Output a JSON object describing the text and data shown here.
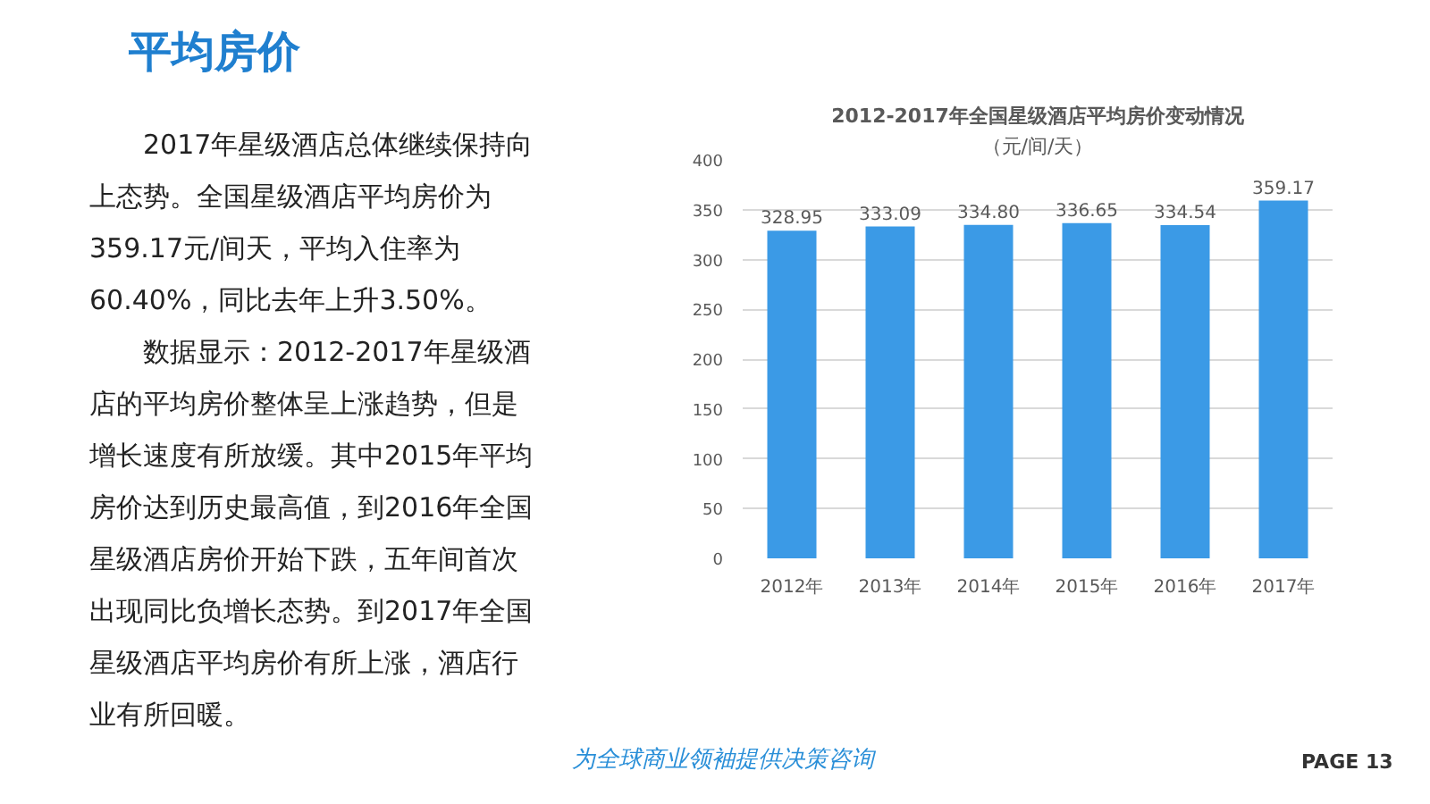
{
  "chart_data": {
    "type": "bar",
    "title": "2012-2017年全国星级酒店平均房价变动情况",
    "subtitle": "（元/间/天）",
    "categories": [
      "2012年",
      "2013年",
      "2014年",
      "2015年",
      "2016年",
      "2017年"
    ],
    "values": [
      328.95,
      333.09,
      334.8,
      336.65,
      334.54,
      359.17
    ],
    "value_labels": [
      "328.95",
      "333.09",
      "334.80",
      "336.65",
      "334.54",
      "359.17"
    ],
    "color": "#3b9ae6",
    "ylim": [
      0,
      400
    ],
    "yticks": [
      0,
      50,
      100,
      150,
      200,
      250,
      300,
      350,
      400
    ],
    "grid": "y",
    "annotations": [
      "平均房价",
      "2017年星级酒店总体继续保持向上态势。全国星级酒店平均房价为359.17元/间天，平均入住率为60.40%，同比去年上升3.50%。",
      "数据显示：2012-2017年星级酒店的平均房价整体呈上涨趋势，但是增长速度有所放缓。其中2015年平均房价达到历史最高值，到2016年全国星级酒店房价开始下跌，五年间首次出现同比负增长态势。到2017年全国星级酒店平均房价有所上涨，酒店行业有所回暖。",
      "为全球商业领袖提供决策咨询",
      "PAGE 13"
    ]
  }
}
